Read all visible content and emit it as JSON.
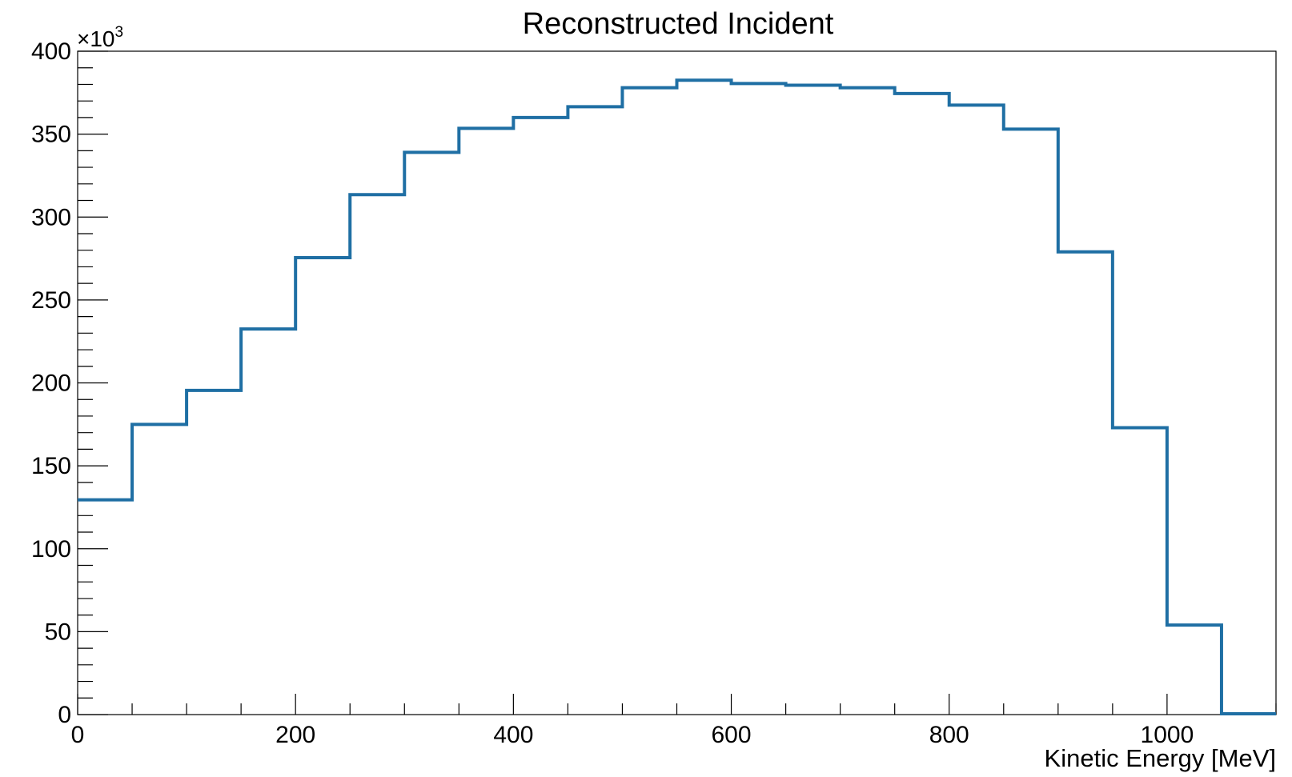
{
  "chart_data": {
    "type": "histogram",
    "title": "Reconstructed Incident",
    "xlabel": "Kinetic Energy [MeV]",
    "ylabel": "",
    "y_multiplier_label": "×10",
    "y_multiplier_exponent": "3",
    "xlim": [
      0,
      1100
    ],
    "ylim": [
      0,
      400
    ],
    "x_ticks": [
      0,
      200,
      400,
      600,
      800,
      1000
    ],
    "x_tick_labels": [
      "0",
      "200",
      "400",
      "600",
      "800",
      "1000"
    ],
    "y_ticks": [
      0,
      50,
      100,
      150,
      200,
      250,
      300,
      350,
      400
    ],
    "y_tick_labels": [
      "0",
      "50",
      "100",
      "150",
      "200",
      "250",
      "300",
      "350",
      "400"
    ],
    "bin_edges": [
      0,
      50,
      100,
      150,
      200,
      250,
      300,
      350,
      400,
      450,
      500,
      550,
      600,
      650,
      700,
      750,
      800,
      850,
      900,
      950,
      1000,
      1050,
      1100
    ],
    "values": [
      129.5,
      175,
      195.5,
      232.5,
      275.5,
      313.5,
      339,
      353.5,
      360,
      366.5,
      378,
      382.5,
      380.5,
      379.5,
      378,
      374.5,
      367.5,
      353,
      279,
      173,
      54,
      0.5
    ],
    "line_color": "#1f6fa4",
    "grid": false,
    "legend": "none"
  }
}
